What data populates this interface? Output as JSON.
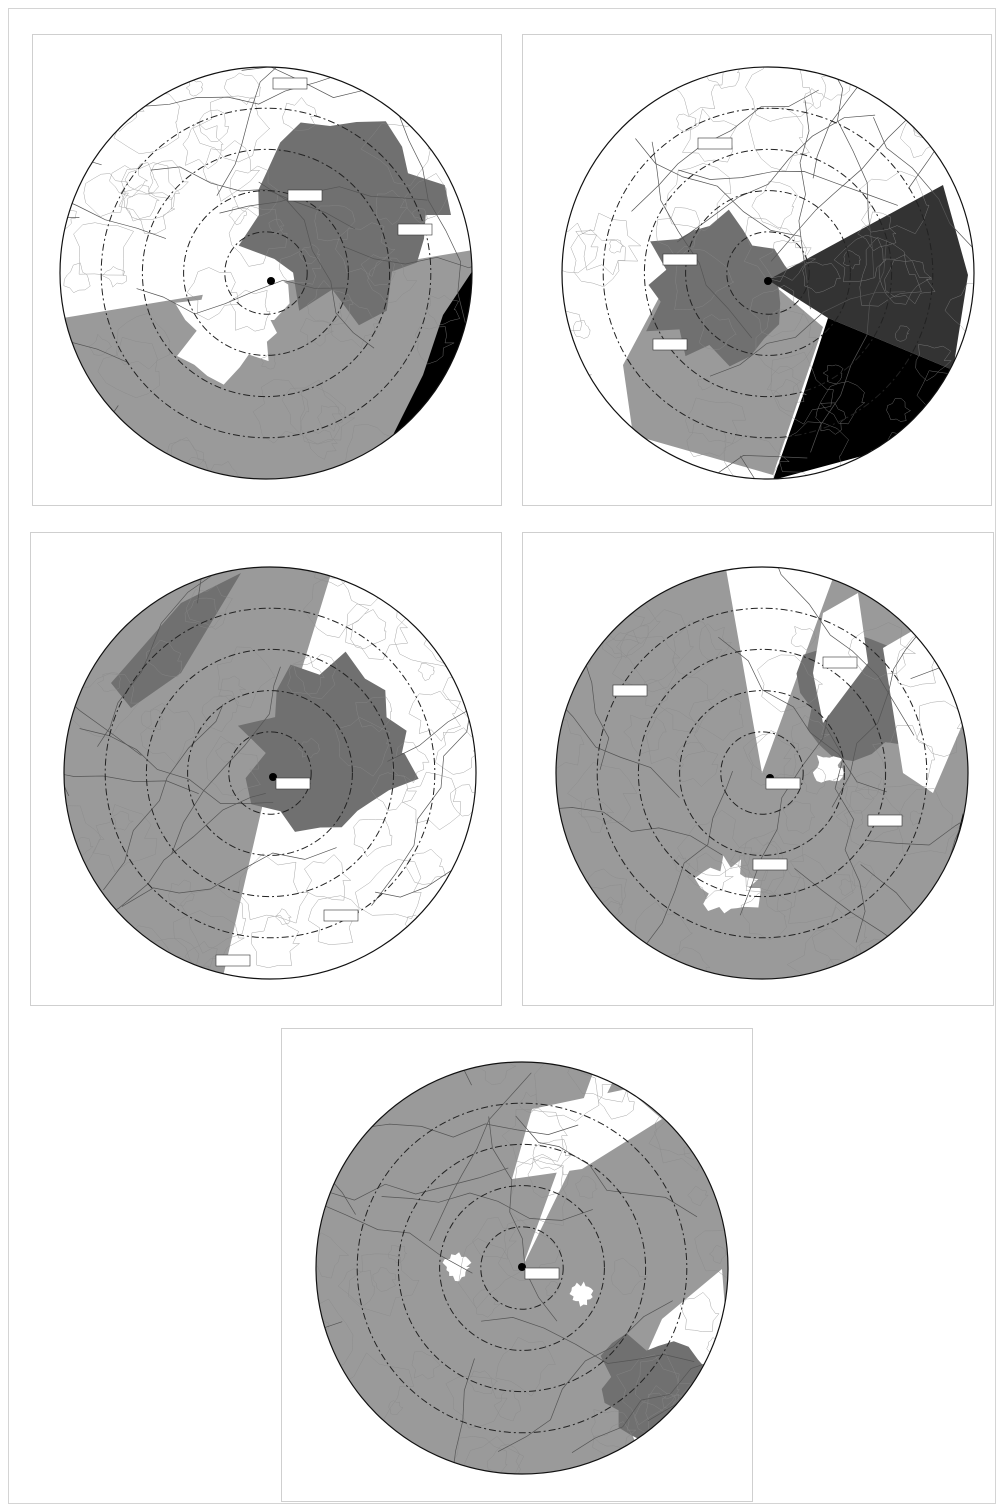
{
  "colors": {
    "page_bg": "#ffffff",
    "visible_land": "#ffffff",
    "occluded": "#9a9a9a",
    "shaded_terrain": "#707070",
    "sea": "#000000",
    "dark_sector": "#333333",
    "contour": "#8a8a8a",
    "road": "#555555",
    "ring": "#222222"
  },
  "panels": [
    {
      "id": "panel-1",
      "station_label": "",
      "place_labels": [
        "",
        "",
        ""
      ]
    },
    {
      "id": "panel-2",
      "station_label": "",
      "place_labels": [
        "",
        "",
        ""
      ]
    },
    {
      "id": "panel-3",
      "station_label": "",
      "place_labels": [
        "",
        ""
      ]
    },
    {
      "id": "panel-4",
      "station_label": "",
      "place_labels": [
        "",
        "",
        "",
        "",
        ""
      ]
    },
    {
      "id": "panel-5",
      "station_label": "",
      "place_labels": [
        ""
      ]
    }
  ]
}
